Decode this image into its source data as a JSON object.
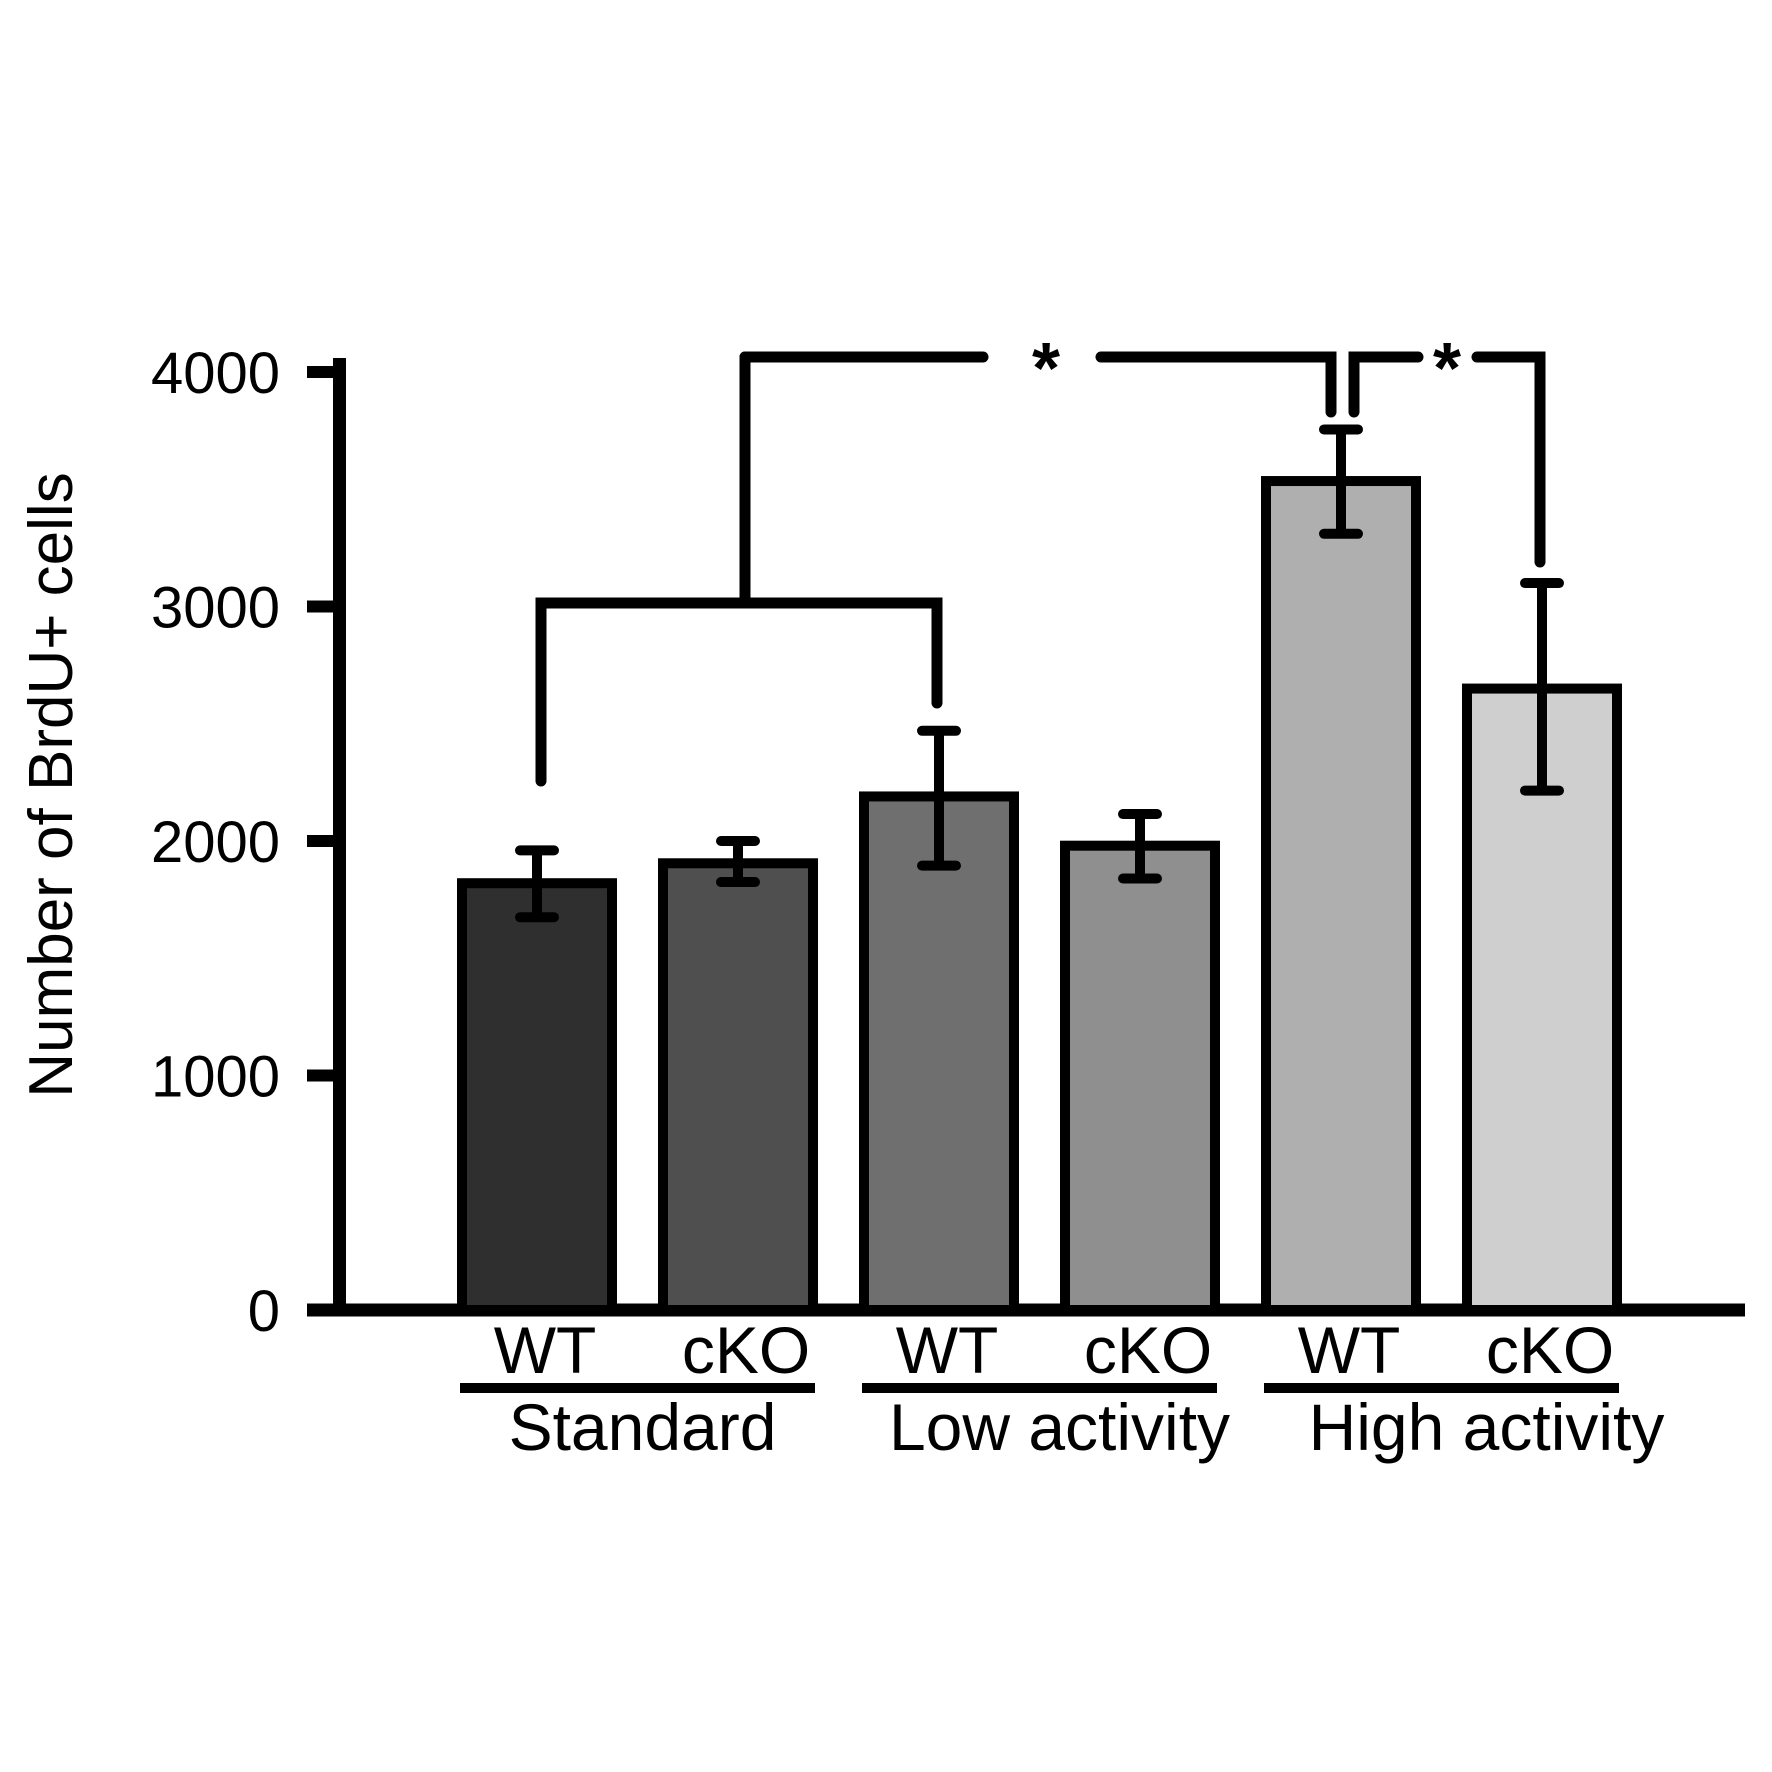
{
  "figure": {
    "background_color": "#ffffff",
    "foreground_color": "#000000"
  },
  "chart_data": {
    "type": "bar",
    "title": "",
    "xlabel": "",
    "ylabel": "Number of BrdU+ cells",
    "ylim": [
      0,
      4000
    ],
    "yticks": [
      0,
      1000,
      2000,
      3000,
      4000
    ],
    "ytick_labels": [
      "0",
      "1000",
      "2000",
      "3000",
      "4000"
    ],
    "grid": false,
    "legend": false,
    "error_bars": true,
    "groups": [
      {
        "label": "Standard",
        "bars": [
          {
            "label": "WT",
            "value": 1820,
            "err_up": 140,
            "err_down": 145,
            "color": "#2f2f2f"
          },
          {
            "label": "cKO",
            "value": 1905,
            "err_up": 95,
            "err_down": 80,
            "color": "#4f4f4f"
          }
        ]
      },
      {
        "label": "Low activity",
        "bars": [
          {
            "label": "WT",
            "value": 2190,
            "err_up": 280,
            "err_down": 295,
            "color": "#6f6f6f"
          },
          {
            "label": "cKO",
            "value": 1980,
            "err_up": 135,
            "err_down": 140,
            "color": "#8f8f8f"
          }
        ]
      },
      {
        "label": "High activity",
        "bars": [
          {
            "label": "WT",
            "value": 3535,
            "err_up": 220,
            "err_down": 225,
            "color": "#afafaf"
          },
          {
            "label": "cKO",
            "value": 2650,
            "err_up": 450,
            "err_down": 435,
            "color": "#cfcfcf"
          }
        ]
      }
    ],
    "significance": [
      {
        "symbol": "*"
      },
      {
        "symbol": "*"
      }
    ],
    "bar_edge_color": "#000000",
    "error_bar_color": "#000000"
  }
}
